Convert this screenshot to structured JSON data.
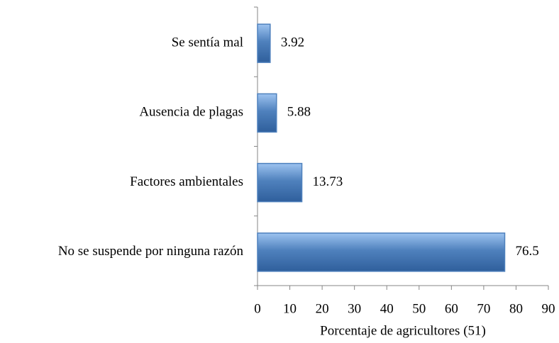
{
  "chart_data": {
    "type": "bar",
    "orientation": "horizontal",
    "x_label": "Porcentaje de agricultores (51)",
    "categories": [
      "Se sentía mal",
      "Ausencia de plagas",
      "Factores ambientales",
      "No se suspende por ninguna razón"
    ],
    "values": [
      3.92,
      5.88,
      13.73,
      76.5
    ],
    "color": "#4f81bd",
    "xlim": [
      0,
      90
    ],
    "xticks": [
      0,
      10,
      20,
      30,
      40,
      50,
      60,
      70,
      80,
      90
    ],
    "grid": false
  }
}
